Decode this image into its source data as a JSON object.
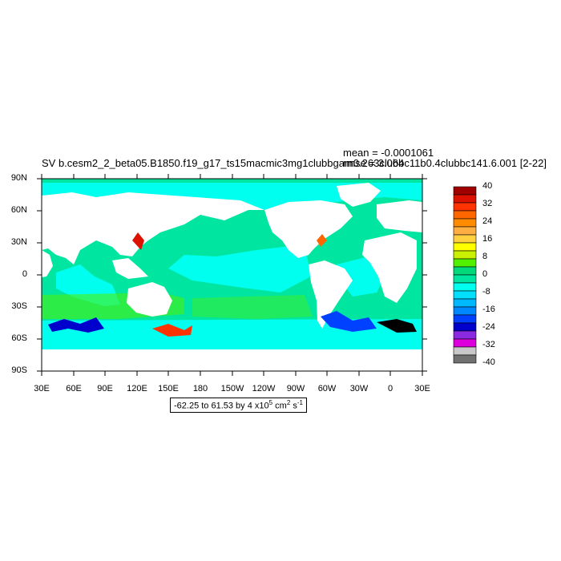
{
  "title": "SV b.cesm2_2_beta05.B1850.f19_g17_ts15macmic3mg1clubbgam0.263clubbc11b0.4clubbc141.6.001 [2-22]",
  "stats": {
    "mean": "mean = -0.0001061",
    "rmse": "rmse = 3.064"
  },
  "range_label": {
    "prefix": "-62.25 to 61.53 by 4 x10",
    "exp": "5",
    "unit": " cm",
    "unit_exp": "2",
    "s": " s",
    "s_exp": "-1"
  },
  "chart_data": {
    "type": "heatmap",
    "projection": "cylindrical equidistant",
    "variable": "SV",
    "lat_ticks": [
      "90N",
      "60N",
      "30N",
      "0",
      "30S",
      "60S",
      "90S"
    ],
    "lon_ticks": [
      "30E",
      "60E",
      "90E",
      "120E",
      "150E",
      "180",
      "150W",
      "120W",
      "90W",
      "60W",
      "30W",
      "0",
      "30E"
    ],
    "colorbar": {
      "levels": [
        "40",
        "32",
        "24",
        "16",
        "8",
        "0",
        "-8",
        "-16",
        "-24",
        "-32",
        "-40"
      ],
      "colors": [
        "#a00000",
        "#dd1100",
        "#ff3300",
        "#ff6600",
        "#ff8c00",
        "#ffae42",
        "#ffd040",
        "#ffff00",
        "#c8f000",
        "#50f000",
        "#00d87a",
        "#00e6a0",
        "#00ffee",
        "#00dfff",
        "#00b8ff",
        "#0088ff",
        "#0040ff",
        "#0000cc",
        "#8a2be2",
        "#dd00dd",
        "#c8c8c8",
        "#707070"
      ]
    },
    "land_color": "#ffffff",
    "dominant_ocean_colors": [
      "#00ffee",
      "#00e6a0",
      "#50f000"
    ]
  }
}
